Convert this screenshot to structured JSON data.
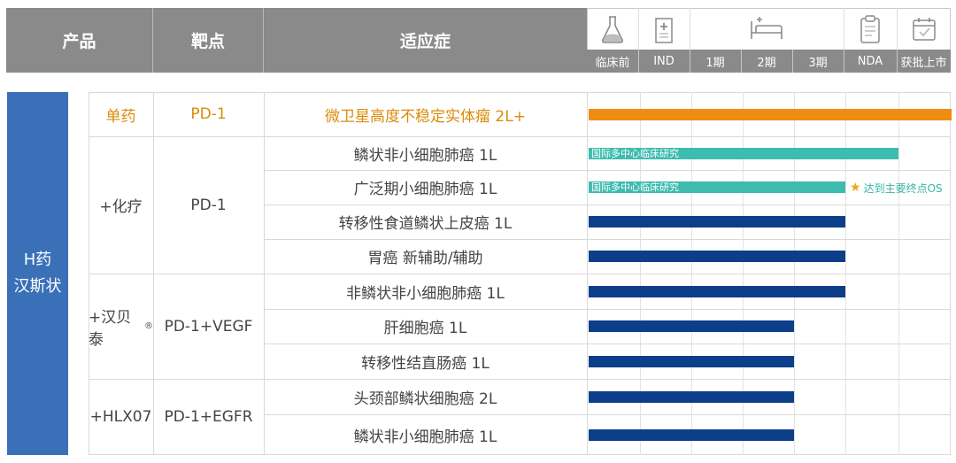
{
  "header": {
    "product": "产品",
    "target": "靶点",
    "indication": "适应症"
  },
  "phases": [
    {
      "label": "临床前",
      "icon": "flask-icon"
    },
    {
      "label": "IND",
      "icon": "hospital-icon"
    },
    {
      "label": "1期",
      "icon": "bed-icon"
    },
    {
      "label": "2期",
      "icon": "bed-icon"
    },
    {
      "label": "3期",
      "icon": "bed-icon"
    },
    {
      "label": "NDA",
      "icon": "clipboard-icon"
    },
    {
      "label": "获批上市",
      "icon": "calendar-check-icon"
    }
  ],
  "group": {
    "line1": "H药",
    "line2": "汉斯状"
  },
  "products": [
    {
      "name": "单药",
      "target": "PD-1",
      "rows": 1
    },
    {
      "name": "+化疗",
      "target": "PD-1",
      "rows": 4
    },
    {
      "name": "+汉贝泰",
      "name_sup": "®",
      "target": "PD-1+VEGF",
      "rows": 3
    },
    {
      "name": "+HLX07",
      "target": "PD-1+EGFR",
      "rows": 2
    }
  ],
  "colors": {
    "orange": "#ef8c12",
    "teal": "#3dbcaf",
    "navy": "#0d3e8a",
    "group": "#3a70b8",
    "header": "#8a8a8a"
  },
  "chart_data": {
    "type": "bar",
    "orientation": "horizontal",
    "x_axis": [
      "临床前",
      "IND",
      "1期",
      "2期",
      "3期",
      "NDA",
      "获批上市"
    ],
    "categories": [
      "微卫星高度不稳定实体瘤 2L+",
      "鳞状非小细胞肺癌 1L",
      "广泛期小细胞肺癌 1L",
      "转移性食道鳞状上皮癌 1L",
      "胃癌 新辅助/辅助",
      "非鳞状非小细胞肺癌 1L",
      "肝细胞癌 1L",
      "转移性结直肠癌 1L",
      "头颈部鳞状细胞癌 2L",
      "鳞状非小细胞肺癌 1L"
    ],
    "values": [
      7,
      6,
      5,
      5,
      5,
      5,
      4,
      4,
      4,
      4
    ],
    "bar_colors": [
      "orange",
      "teal",
      "teal",
      "navy",
      "navy",
      "navy",
      "navy",
      "navy",
      "navy",
      "navy"
    ],
    "bar_texts": [
      "",
      "国际多中心临床研究",
      "国际多中心临床研究",
      "",
      "",
      "",
      "",
      "",
      "",
      ""
    ],
    "annotations": [
      {
        "row": 2,
        "text": "达到主要终点OS"
      }
    ]
  }
}
